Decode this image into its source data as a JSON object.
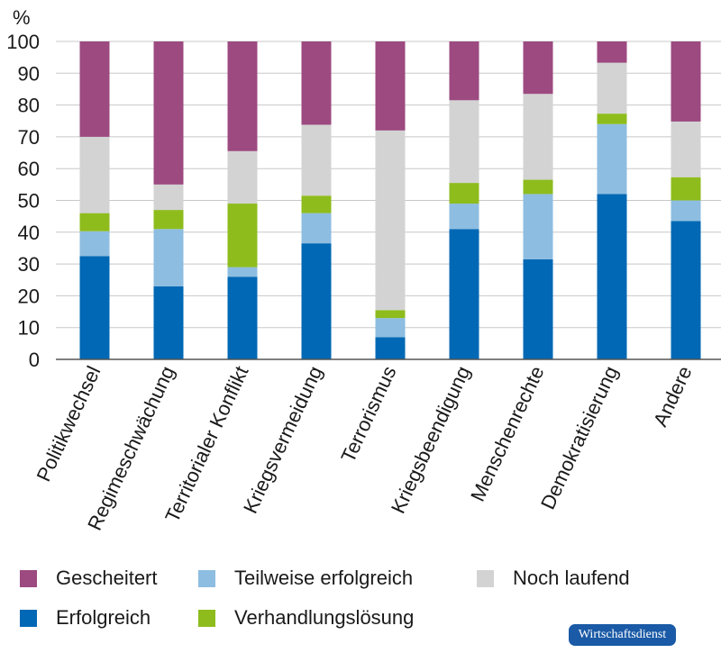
{
  "chart_data": {
    "type": "bar",
    "stacked": true,
    "unit_label": "%",
    "ylim": [
      0,
      100
    ],
    "yticks": [
      0,
      10,
      20,
      30,
      40,
      50,
      60,
      70,
      80,
      90,
      100
    ],
    "grid": true,
    "categories": [
      "Politikwechsel",
      "Regimeschwächung",
      "Territorialer Konflikt",
      "Kriegsvermeidung",
      "Terrorismus",
      "Kriegsbeendigung",
      "Menschenrechte",
      "Demokratisierung",
      "Andere"
    ],
    "series": [
      {
        "name": "Erfolgreich",
        "color": "#0068b4",
        "values": [
          32.5,
          23,
          26,
          36.5,
          7,
          41,
          31.5,
          52,
          43.5
        ]
      },
      {
        "name": "Teilweise erfolgreich",
        "color": "#8dbde0",
        "values": [
          7.8,
          18,
          3,
          9.5,
          6,
          8,
          20.5,
          22,
          6.5
        ]
      },
      {
        "name": "Verhandlungslösung",
        "color": "#8ebc1d",
        "values": [
          5.7,
          6,
          20,
          5.5,
          2.5,
          6.5,
          4.5,
          3.3,
          7.3
        ]
      },
      {
        "name": "Noch laufend",
        "color": "#d3d3d3",
        "values": [
          24,
          8,
          16.5,
          22.3,
          56.5,
          26,
          27,
          16,
          17.5
        ]
      },
      {
        "name": "Gescheitert",
        "color": "#9c4a80",
        "values": [
          30,
          45,
          34.5,
          26.2,
          28,
          18.5,
          16.5,
          6.7,
          25.2
        ]
      }
    ],
    "legend_position": "bottom"
  },
  "legend": {
    "items": [
      {
        "label": "Gescheitert",
        "color": "#9c4a80"
      },
      {
        "label": "Teilweise erfolgreich",
        "color": "#8dbde0"
      },
      {
        "label": "Noch laufend",
        "color": "#d3d3d3"
      },
      {
        "label": "Erfolgreich",
        "color": "#0068b4"
      },
      {
        "label": "Verhandlungslösung",
        "color": "#8ebc1d"
      }
    ]
  },
  "source_badge": "Wirtschaftsdienst"
}
